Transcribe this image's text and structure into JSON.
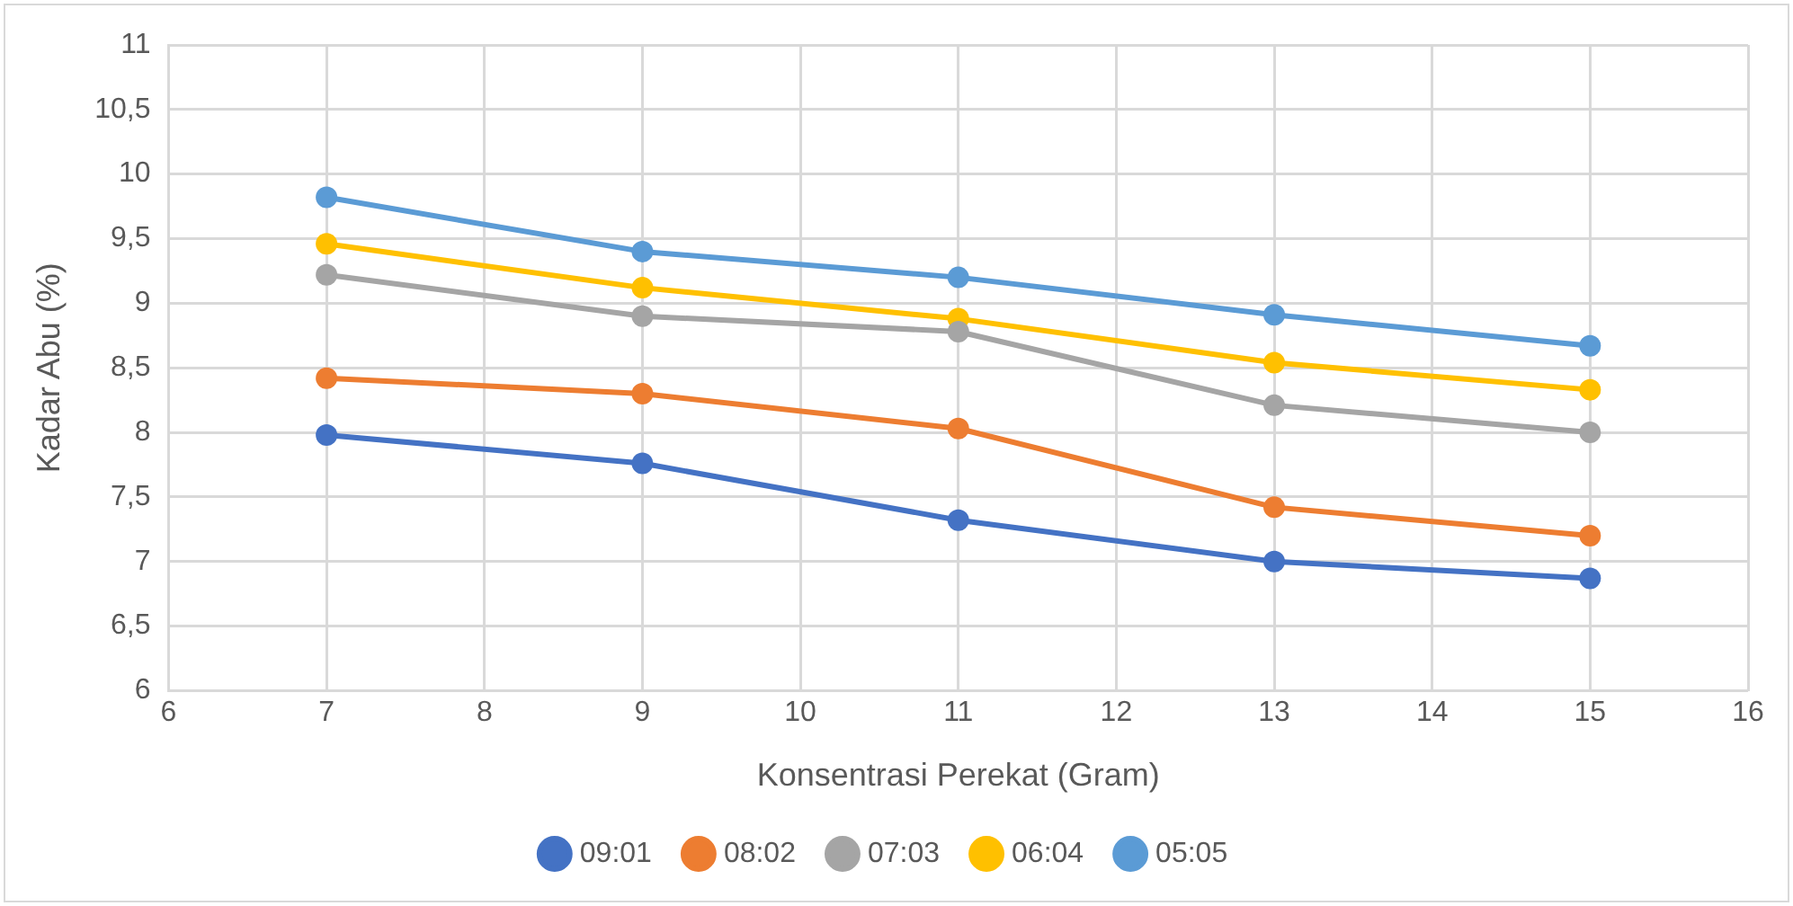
{
  "chart_data": {
    "type": "line",
    "xlabel": "Konsentrasi Perekat (Gram)",
    "ylabel": "Kadar Abu (%)",
    "x": [
      7,
      9,
      11,
      13,
      15
    ],
    "series": [
      {
        "name": "09:01",
        "color": "#4472c4",
        "values": [
          7.98,
          7.76,
          7.32,
          7.0,
          6.87
        ]
      },
      {
        "name": "08:02",
        "color": "#ed7d31",
        "values": [
          8.42,
          8.3,
          8.03,
          7.42,
          7.2
        ]
      },
      {
        "name": "07:03",
        "color": "#a5a5a5",
        "values": [
          9.22,
          8.9,
          8.78,
          8.21,
          8.0
        ]
      },
      {
        "name": "06:04",
        "color": "#ffc000",
        "values": [
          9.46,
          9.12,
          8.88,
          8.54,
          8.33
        ]
      },
      {
        "name": "05:05",
        "color": "#5b9bd5",
        "values": [
          9.82,
          9.4,
          9.2,
          8.91,
          8.67
        ]
      }
    ],
    "xlim": [
      6,
      16
    ],
    "xticks": [
      6,
      7,
      8,
      9,
      10,
      11,
      12,
      13,
      14,
      15,
      16
    ],
    "ylim": [
      6,
      11
    ],
    "yticks": [
      6,
      {
        "value": 6.5,
        "label": "6,5"
      },
      7,
      {
        "value": 7.5,
        "label": "7,5"
      },
      8,
      {
        "value": 8.5,
        "label": "8,5"
      },
      9,
      {
        "value": 9.5,
        "label": "9,5"
      },
      10,
      {
        "value": 10.5,
        "label": "10,5"
      },
      11
    ],
    "grid": true,
    "legend": "bottom",
    "marker": "circle",
    "line_style": "solid"
  }
}
